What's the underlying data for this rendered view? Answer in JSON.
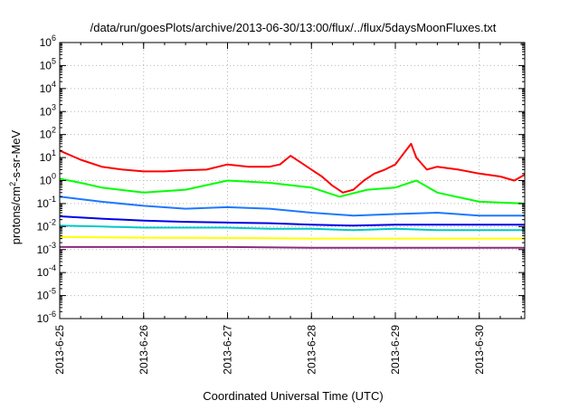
{
  "chart_data": {
    "type": "line",
    "title": "/data/run/goesPlots/archive/2013-06-30/13:00/flux/../flux/5daysMoonFluxes.txt",
    "xlabel": "Coordinated Universal Time (UTC)",
    "ylabel": {
      "base": "protons/cm",
      "sup": "2",
      "rest": "-s-sr-MeV"
    },
    "x_unit": "days",
    "xlim": [
      "2013-06-25 00:00",
      "2013-06-30 13:00"
    ],
    "x_ticks": [
      "2013-6-25",
      "2013-6-26",
      "2013-6-27",
      "2013-6-28",
      "2013-6-29",
      "2013-6-30"
    ],
    "y_scale": "log",
    "ylim": [
      1e-06,
      1000000.0
    ],
    "y_ticks": [
      {
        "base": "10",
        "exp": "-6"
      },
      {
        "base": "10",
        "exp": "-5"
      },
      {
        "base": "10",
        "exp": "-4"
      },
      {
        "base": "10",
        "exp": "-3"
      },
      {
        "base": "10",
        "exp": "-2"
      },
      {
        "base": "10",
        "exp": "-1"
      },
      {
        "base": "10",
        "exp": "0"
      },
      {
        "base": "10",
        "exp": "1"
      },
      {
        "base": "10",
        "exp": "2"
      },
      {
        "base": "10",
        "exp": "3"
      },
      {
        "base": "10",
        "exp": "4"
      },
      {
        "base": "10",
        "exp": "5"
      },
      {
        "base": "10",
        "exp": "6"
      }
    ],
    "grid": true,
    "series": [
      {
        "color": "#ff0000",
        "x": [
          "2013-06-25 00:00",
          "2013-06-25 06:00",
          "2013-06-25 12:00",
          "2013-06-25 18:00",
          "2013-06-26 00:00",
          "2013-06-26 06:00",
          "2013-06-26 12:00",
          "2013-06-26 18:00",
          "2013-06-27 00:00",
          "2013-06-27 06:00",
          "2013-06-27 12:00",
          "2013-06-27 15:00",
          "2013-06-27 18:00",
          "2013-06-27 21:00",
          "2013-06-28 00:00",
          "2013-06-28 03:00",
          "2013-06-28 06:00",
          "2013-06-28 09:00",
          "2013-06-28 12:00",
          "2013-06-28 15:00",
          "2013-06-28 18:00",
          "2013-06-28 21:00",
          "2013-06-29 00:00",
          "2013-06-29 03:00",
          "2013-06-29 04:30",
          "2013-06-29 06:00",
          "2013-06-29 09:00",
          "2013-06-29 12:00",
          "2013-06-29 18:00",
          "2013-06-30 00:00",
          "2013-06-30 06:00",
          "2013-06-30 10:00",
          "2013-06-30 13:00"
        ],
        "y": [
          20,
          8,
          4,
          3,
          2.5,
          2.5,
          2.8,
          3,
          5,
          4,
          4,
          5,
          12,
          6,
          3,
          1.5,
          0.6,
          0.3,
          0.4,
          1,
          2,
          3,
          5,
          20,
          40,
          10,
          3,
          4,
          3,
          2,
          1.5,
          1,
          1.8
        ]
      },
      {
        "color": "#00ff00",
        "x": [
          "2013-06-25 00:00",
          "2013-06-25 06:00",
          "2013-06-25 12:00",
          "2013-06-26 00:00",
          "2013-06-26 12:00",
          "2013-06-27 00:00",
          "2013-06-27 12:00",
          "2013-06-28 00:00",
          "2013-06-28 08:00",
          "2013-06-28 16:00",
          "2013-06-29 00:00",
          "2013-06-29 06:00",
          "2013-06-29 12:00",
          "2013-06-30 00:00",
          "2013-06-30 13:00"
        ],
        "y": [
          1.2,
          0.8,
          0.5,
          0.3,
          0.4,
          1,
          0.8,
          0.5,
          0.2,
          0.4,
          0.5,
          1,
          0.3,
          0.12,
          0.1
        ]
      },
      {
        "color": "#1e78ff",
        "x": [
          "2013-06-25 00:00",
          "2013-06-25 12:00",
          "2013-06-26 00:00",
          "2013-06-26 12:00",
          "2013-06-27 00:00",
          "2013-06-27 12:00",
          "2013-06-28 00:00",
          "2013-06-28 12:00",
          "2013-06-29 00:00",
          "2013-06-29 12:00",
          "2013-06-30 00:00",
          "2013-06-30 13:00"
        ],
        "y": [
          0.2,
          0.12,
          0.08,
          0.06,
          0.07,
          0.06,
          0.04,
          0.03,
          0.035,
          0.04,
          0.03,
          0.03
        ]
      },
      {
        "color": "#0000e6",
        "x": [
          "2013-06-25 00:00",
          "2013-06-25 12:00",
          "2013-06-26 00:00",
          "2013-06-26 12:00",
          "2013-06-27 00:00",
          "2013-06-27 12:00",
          "2013-06-28 00:00",
          "2013-06-28 12:00",
          "2013-06-29 00:00",
          "2013-06-29 12:00",
          "2013-06-30 00:00",
          "2013-06-30 13:00"
        ],
        "y": [
          0.028,
          0.022,
          0.018,
          0.016,
          0.015,
          0.014,
          0.012,
          0.011,
          0.012,
          0.012,
          0.012,
          0.012
        ]
      },
      {
        "color": "#00c8c8",
        "x": [
          "2013-06-25 00:00",
          "2013-06-25 12:00",
          "2013-06-26 00:00",
          "2013-06-26 12:00",
          "2013-06-27 00:00",
          "2013-06-27 12:00",
          "2013-06-28 00:00",
          "2013-06-28 12:00",
          "2013-06-29 00:00",
          "2013-06-29 12:00",
          "2013-06-30 00:00",
          "2013-06-30 13:00"
        ],
        "y": [
          0.011,
          0.01,
          0.009,
          0.009,
          0.009,
          0.008,
          0.008,
          0.007,
          0.008,
          0.007,
          0.007,
          0.007
        ]
      },
      {
        "color": "#ffff00",
        "x": [
          "2013-06-25 00:00",
          "2013-06-26 00:00",
          "2013-06-27 00:00",
          "2013-06-28 00:00",
          "2013-06-29 00:00",
          "2013-06-30 00:00",
          "2013-06-30 13:00"
        ],
        "y": [
          0.0035,
          0.0033,
          0.0032,
          0.003,
          0.003,
          0.003,
          0.003
        ]
      },
      {
        "color": "#8b2a7a",
        "x": [
          "2013-06-25 00:00",
          "2013-06-26 00:00",
          "2013-06-27 00:00",
          "2013-06-28 00:00",
          "2013-06-29 00:00",
          "2013-06-30 00:00",
          "2013-06-30 13:00"
        ],
        "y": [
          0.0013,
          0.0013,
          0.0013,
          0.0012,
          0.0012,
          0.0012,
          0.0012
        ]
      }
    ]
  }
}
